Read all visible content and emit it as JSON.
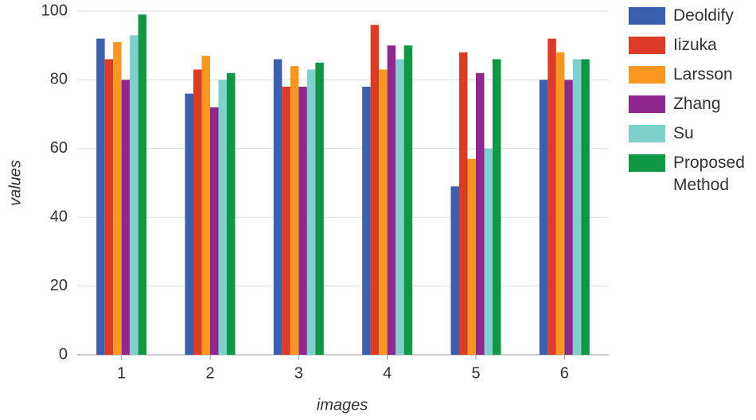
{
  "chart_data": {
    "type": "bar",
    "x_label": "images",
    "y_label": "values",
    "categories": [
      "1",
      "2",
      "3",
      "4",
      "5",
      "6"
    ],
    "series": [
      {
        "name": "Deoldify",
        "color": "#3a5fad",
        "values": [
          92,
          76,
          86,
          78,
          49,
          80
        ]
      },
      {
        "name": "Iizuka",
        "color": "#dc3b26",
        "values": [
          86,
          83,
          78,
          96,
          88,
          92
        ]
      },
      {
        "name": "Larsson",
        "color": "#f7971f",
        "values": [
          91,
          87,
          84,
          83,
          57,
          88
        ]
      },
      {
        "name": "Zhang",
        "color": "#90278e",
        "values": [
          80,
          72,
          78,
          90,
          82,
          80
        ]
      },
      {
        "name": "Su",
        "color": "#7fcfca",
        "values": [
          93,
          80,
          83,
          86,
          60,
          86
        ]
      },
      {
        "name": "Proposed Method",
        "color": "#109746",
        "values": [
          99,
          82,
          85,
          90,
          86,
          86
        ]
      }
    ],
    "ylim": [
      0,
      100
    ],
    "yticks": [
      0,
      20,
      40,
      60,
      80,
      100
    ],
    "grid": true,
    "legend": "right"
  }
}
